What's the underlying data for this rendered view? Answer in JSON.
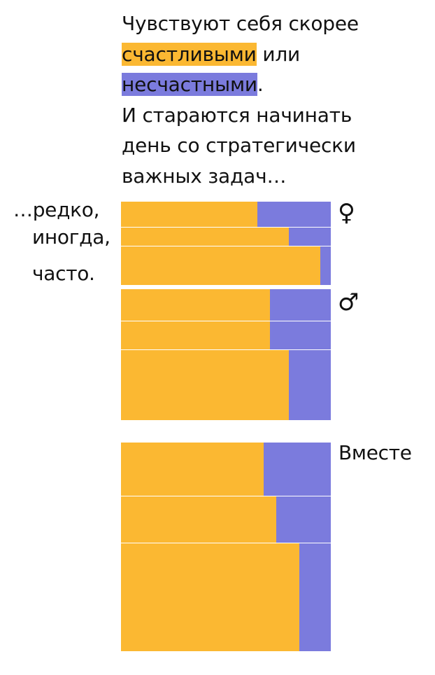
{
  "title": {
    "part1": "Чувствуют себя скорее ",
    "happy_word": "счастливыми",
    "part2": " или ",
    "unhappy_word": "несчастными",
    "part3": ".",
    "line4": "И стараются начинать",
    "line5": "день со стратегически",
    "line6": "важных задач…"
  },
  "frequency_labels": [
    "…редко,",
    "иногда,",
    "часто."
  ],
  "colors": {
    "happy": "#fbb832",
    "unhappy": "#7b7bdd"
  },
  "chart_data": {
    "type": "bar",
    "orientation": "horizontal",
    "stacked": true,
    "normalized": true,
    "categories": [
      "…редко,",
      "иногда,",
      "часто."
    ],
    "groups": [
      {
        "label": "♀",
        "name": "female",
        "happy": [
          0.65,
          0.8,
          0.95
        ],
        "unhappy": [
          0.35,
          0.2,
          0.05
        ],
        "weights": [
          0.36,
          0.26,
          0.55
        ]
      },
      {
        "label": "♂",
        "name": "male",
        "happy": [
          0.71,
          0.71,
          0.8
        ],
        "unhappy": [
          0.29,
          0.29,
          0.2
        ],
        "weights": [
          0.45,
          0.4,
          1.0
        ]
      },
      {
        "label": "Вместе",
        "name": "together",
        "happy": [
          0.68,
          0.74,
          0.85
        ],
        "unhappy": [
          0.32,
          0.26,
          0.15
        ],
        "weights": [
          0.76,
          0.66,
          1.54
        ]
      }
    ]
  }
}
